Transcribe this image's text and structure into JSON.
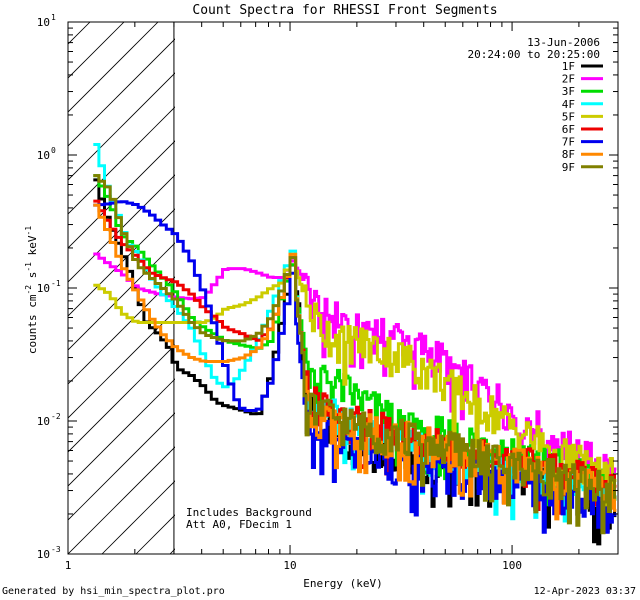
{
  "chart_data": {
    "type": "line",
    "title": "Count Spectra for RHESSI Front Segments",
    "xlabel": "Energy (keV)",
    "ylabel_parts": [
      "counts cm",
      "-2",
      " s",
      "-1",
      " keV",
      "-1"
    ],
    "xscale": "log",
    "yscale": "log",
    "xlim": [
      1,
      300
    ],
    "ylim": [
      0.001,
      10
    ],
    "x_ticks": [
      {
        "value": 1,
        "label": "1"
      },
      {
        "value": 10,
        "label": "10"
      },
      {
        "value": 100,
        "label": "100"
      }
    ],
    "y_ticks": [
      {
        "value": 10,
        "base": "10",
        "exp": "1"
      },
      {
        "value": 1,
        "base": "10",
        "exp": "0"
      },
      {
        "value": 0.1,
        "base": "10",
        "exp": "-1"
      },
      {
        "value": 0.01,
        "base": "10",
        "exp": "-2"
      },
      {
        "value": 0.001,
        "base": "10",
        "exp": "-3"
      }
    ],
    "hatched_region": [
      1,
      3
    ],
    "threshold_line_keV": 3,
    "date": "13-Jun-2006",
    "time_range": "20:24:00 to 20:25:00",
    "annotations": [
      "Includes Background",
      "Att A0, FDecim 1"
    ],
    "legend_position": "top-right",
    "series": [
      {
        "name": "1F",
        "color": "#000000",
        "points": [
          [
            1.3,
            0.65
          ],
          [
            1.45,
            0.35
          ],
          [
            1.6,
            0.24
          ],
          [
            1.8,
            0.15
          ],
          [
            2.0,
            0.09
          ],
          [
            2.2,
            0.055
          ],
          [
            2.5,
            0.045
          ],
          [
            2.8,
            0.035
          ],
          [
            3.0,
            0.025
          ],
          [
            3.5,
            0.022
          ],
          [
            4.0,
            0.018
          ],
          [
            4.5,
            0.014
          ],
          [
            5.0,
            0.013
          ],
          [
            6.0,
            0.012
          ],
          [
            7.0,
            0.011
          ],
          [
            8.0,
            0.022
          ],
          [
            9.0,
            0.06
          ],
          [
            10.0,
            0.15
          ],
          [
            10.8,
            0.08
          ],
          [
            11.5,
            0.02
          ],
          [
            13,
            0.012
          ],
          [
            16,
            0.008
          ],
          [
            20,
            0.007
          ],
          [
            25,
            0.006
          ],
          [
            30,
            0.006
          ],
          [
            40,
            0.005
          ],
          [
            50,
            0.005
          ],
          [
            60,
            0.005
          ],
          [
            80,
            0.005
          ],
          [
            100,
            0.004
          ],
          [
            130,
            0.004
          ],
          [
            160,
            0.003
          ],
          [
            200,
            0.003
          ],
          [
            250,
            0.0025
          ],
          [
            290,
            0.002
          ]
        ]
      },
      {
        "name": "2F",
        "color": "#ff00ff",
        "points": [
          [
            1.3,
            0.18
          ],
          [
            1.5,
            0.15
          ],
          [
            1.7,
            0.13
          ],
          [
            2.0,
            0.1
          ],
          [
            2.5,
            0.09
          ],
          [
            3.0,
            0.085
          ],
          [
            3.5,
            0.083
          ],
          [
            4.0,
            0.085
          ],
          [
            4.5,
            0.11
          ],
          [
            5.0,
            0.14
          ],
          [
            6.0,
            0.14
          ],
          [
            7.0,
            0.13
          ],
          [
            8.0,
            0.12
          ],
          [
            9.0,
            0.12
          ],
          [
            10.0,
            0.16
          ],
          [
            11.0,
            0.13
          ],
          [
            12.0,
            0.09
          ],
          [
            14,
            0.065
          ],
          [
            16,
            0.06
          ],
          [
            20,
            0.055
          ],
          [
            25,
            0.048
          ],
          [
            30,
            0.045
          ],
          [
            40,
            0.035
          ],
          [
            50,
            0.028
          ],
          [
            60,
            0.022
          ],
          [
            80,
            0.016
          ],
          [
            100,
            0.012
          ],
          [
            130,
            0.009
          ],
          [
            160,
            0.007
          ],
          [
            200,
            0.006
          ],
          [
            250,
            0.005
          ],
          [
            290,
            0.004
          ]
        ]
      },
      {
        "name": "3F",
        "color": "#00dd00",
        "points": [
          [
            1.3,
            0.7
          ],
          [
            1.5,
            0.45
          ],
          [
            1.7,
            0.25
          ],
          [
            2.0,
            0.2
          ],
          [
            2.3,
            0.15
          ],
          [
            2.6,
            0.12
          ],
          [
            3.0,
            0.09
          ],
          [
            3.5,
            0.06
          ],
          [
            4.0,
            0.05
          ],
          [
            5.0,
            0.04
          ],
          [
            6.0,
            0.037
          ],
          [
            7.0,
            0.035
          ],
          [
            8.0,
            0.04
          ],
          [
            9.0,
            0.09
          ],
          [
            10.0,
            0.15
          ],
          [
            11.0,
            0.06
          ],
          [
            12,
            0.025
          ],
          [
            14,
            0.022
          ],
          [
            17,
            0.018
          ],
          [
            20,
            0.015
          ],
          [
            25,
            0.012
          ],
          [
            30,
            0.01
          ],
          [
            40,
            0.009
          ],
          [
            50,
            0.008
          ],
          [
            70,
            0.007
          ],
          [
            100,
            0.006
          ],
          [
            150,
            0.005
          ],
          [
            200,
            0.004
          ],
          [
            290,
            0.003
          ]
        ]
      },
      {
        "name": "4F",
        "color": "#00ffff",
        "points": [
          [
            1.3,
            1.2
          ],
          [
            1.45,
            0.6
          ],
          [
            1.6,
            0.4
          ],
          [
            1.8,
            0.22
          ],
          [
            2.0,
            0.18
          ],
          [
            2.3,
            0.12
          ],
          [
            2.6,
            0.09
          ],
          [
            3.0,
            0.07
          ],
          [
            3.5,
            0.05
          ],
          [
            4.0,
            0.03
          ],
          [
            4.5,
            0.02
          ],
          [
            5.0,
            0.018
          ],
          [
            5.5,
            0.02
          ],
          [
            6.0,
            0.025
          ],
          [
            7.0,
            0.04
          ],
          [
            8.0,
            0.07
          ],
          [
            9.0,
            0.12
          ],
          [
            10.0,
            0.19
          ],
          [
            11,
            0.05
          ],
          [
            12,
            0.015
          ],
          [
            15,
            0.012
          ],
          [
            20,
            0.009
          ],
          [
            30,
            0.007
          ],
          [
            40,
            0.006
          ],
          [
            60,
            0.005
          ],
          [
            100,
            0.004
          ],
          [
            150,
            0.004
          ],
          [
            200,
            0.0035
          ],
          [
            290,
            0.003
          ]
        ]
      },
      {
        "name": "5F",
        "color": "#cccc00",
        "points": [
          [
            1.3,
            0.105
          ],
          [
            1.5,
            0.09
          ],
          [
            1.7,
            0.065
          ],
          [
            2.0,
            0.055
          ],
          [
            2.5,
            0.055
          ],
          [
            3.0,
            0.055
          ],
          [
            3.5,
            0.055
          ],
          [
            4.0,
            0.055
          ],
          [
            4.5,
            0.06
          ],
          [
            5.0,
            0.07
          ],
          [
            6.0,
            0.075
          ],
          [
            7.0,
            0.085
          ],
          [
            8.0,
            0.1
          ],
          [
            9.0,
            0.11
          ],
          [
            10.0,
            0.18
          ],
          [
            11.0,
            0.11
          ],
          [
            12,
            0.07
          ],
          [
            14,
            0.05
          ],
          [
            16,
            0.042
          ],
          [
            20,
            0.04
          ],
          [
            25,
            0.035
          ],
          [
            30,
            0.032
          ],
          [
            40,
            0.025
          ],
          [
            50,
            0.02
          ],
          [
            60,
            0.016
          ],
          [
            80,
            0.012
          ],
          [
            100,
            0.009
          ],
          [
            130,
            0.007
          ],
          [
            160,
            0.006
          ],
          [
            200,
            0.005
          ],
          [
            250,
            0.0045
          ],
          [
            290,
            0.004
          ]
        ]
      },
      {
        "name": "6F",
        "color": "#ee0000",
        "points": [
          [
            1.3,
            0.45
          ],
          [
            1.5,
            0.3
          ],
          [
            1.7,
            0.22
          ],
          [
            2.0,
            0.17
          ],
          [
            2.3,
            0.13
          ],
          [
            2.6,
            0.12
          ],
          [
            3.0,
            0.11
          ],
          [
            3.5,
            0.09
          ],
          [
            4.0,
            0.07
          ],
          [
            4.5,
            0.06
          ],
          [
            5.0,
            0.05
          ],
          [
            6.0,
            0.045
          ],
          [
            7.0,
            0.04
          ],
          [
            8.0,
            0.05
          ],
          [
            9.0,
            0.09
          ],
          [
            10.0,
            0.17
          ],
          [
            11.0,
            0.05
          ],
          [
            12,
            0.015
          ],
          [
            15,
            0.012
          ],
          [
            20,
            0.01
          ],
          [
            25,
            0.009
          ],
          [
            30,
            0.008
          ],
          [
            40,
            0.007
          ],
          [
            60,
            0.006
          ],
          [
            100,
            0.005
          ],
          [
            150,
            0.0045
          ],
          [
            200,
            0.004
          ],
          [
            290,
            0.003
          ]
        ]
      },
      {
        "name": "7F",
        "color": "#0000ee",
        "points": [
          [
            1.3,
            0.42
          ],
          [
            1.5,
            0.43
          ],
          [
            1.7,
            0.45
          ],
          [
            2.0,
            0.42
          ],
          [
            2.3,
            0.36
          ],
          [
            2.6,
            0.3
          ],
          [
            3.0,
            0.25
          ],
          [
            3.5,
            0.16
          ],
          [
            4.0,
            0.09
          ],
          [
            4.5,
            0.05
          ],
          [
            5.0,
            0.025
          ],
          [
            5.5,
            0.015
          ],
          [
            6.0,
            0.012
          ],
          [
            7.0,
            0.012
          ],
          [
            8.0,
            0.02
          ],
          [
            9.0,
            0.05
          ],
          [
            10.0,
            0.13
          ],
          [
            11,
            0.03
          ],
          [
            12,
            0.01
          ],
          [
            15,
            0.008
          ],
          [
            20,
            0.006
          ],
          [
            30,
            0.005
          ],
          [
            40,
            0.004
          ],
          [
            60,
            0.004
          ],
          [
            100,
            0.0035
          ],
          [
            150,
            0.003
          ],
          [
            200,
            0.0025
          ],
          [
            290,
            0.002
          ]
        ]
      },
      {
        "name": "8F",
        "color": "#ff8800",
        "points": [
          [
            1.3,
            0.42
          ],
          [
            1.5,
            0.25
          ],
          [
            1.7,
            0.15
          ],
          [
            2.0,
            0.09
          ],
          [
            2.3,
            0.06
          ],
          [
            2.6,
            0.045
          ],
          [
            3.0,
            0.035
          ],
          [
            3.5,
            0.03
          ],
          [
            4.0,
            0.028
          ],
          [
            5.0,
            0.028
          ],
          [
            6.0,
            0.03
          ],
          [
            7.0,
            0.035
          ],
          [
            8.0,
            0.05
          ],
          [
            9.0,
            0.09
          ],
          [
            10.0,
            0.18
          ],
          [
            11,
            0.05
          ],
          [
            12,
            0.013
          ],
          [
            15,
            0.01
          ],
          [
            20,
            0.009
          ],
          [
            30,
            0.008
          ],
          [
            40,
            0.007
          ],
          [
            60,
            0.006
          ],
          [
            100,
            0.005
          ],
          [
            150,
            0.004
          ],
          [
            200,
            0.0035
          ],
          [
            290,
            0.003
          ]
        ]
      },
      {
        "name": "9F",
        "color": "#808000",
        "points": [
          [
            1.3,
            0.7
          ],
          [
            1.5,
            0.55
          ],
          [
            1.7,
            0.28
          ],
          [
            2.0,
            0.15
          ],
          [
            2.3,
            0.12
          ],
          [
            2.6,
            0.1
          ],
          [
            3.0,
            0.08
          ],
          [
            3.5,
            0.055
          ],
          [
            4.0,
            0.045
          ],
          [
            4.5,
            0.042
          ],
          [
            5.0,
            0.04
          ],
          [
            6.0,
            0.04
          ],
          [
            7.0,
            0.045
          ],
          [
            8.0,
            0.06
          ],
          [
            9.0,
            0.1
          ],
          [
            10.0,
            0.17
          ],
          [
            11,
            0.05
          ],
          [
            12,
            0.013
          ],
          [
            15,
            0.011
          ],
          [
            20,
            0.009
          ],
          [
            30,
            0.008
          ],
          [
            40,
            0.007
          ],
          [
            60,
            0.006
          ],
          [
            100,
            0.005
          ],
          [
            150,
            0.004
          ],
          [
            200,
            0.0035
          ],
          [
            290,
            0.003
          ]
        ]
      }
    ]
  },
  "footer": {
    "generated_by": "Generated by hsi_min_spectra_plot.pro",
    "timestamp": "12-Apr-2023 03:37"
  }
}
